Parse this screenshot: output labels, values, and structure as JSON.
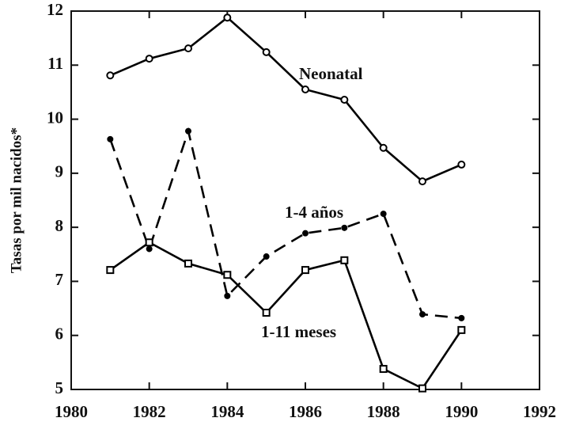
{
  "chart_data": {
    "type": "line",
    "y_label": "Tasas por mil nacidos*",
    "x": [
      1981,
      1982,
      1983,
      1984,
      1985,
      1986,
      1987,
      1988,
      1989,
      1990
    ],
    "series": [
      {
        "name": "Neonatal",
        "color": "#000000",
        "marker": "circle",
        "dashed": false,
        "values": [
          10.81,
          11.12,
          11.31,
          11.88,
          11.24,
          10.55,
          10.36,
          9.47,
          8.85,
          9.16
        ]
      },
      {
        "name": "1-4 años",
        "color": "#000000",
        "marker": "dot",
        "dashed": true,
        "values": [
          9.63,
          7.6,
          9.78,
          6.73,
          7.46,
          7.89,
          7.99,
          8.25,
          6.39,
          6.32
        ]
      },
      {
        "name": "1-11 meses",
        "color": "#000000",
        "marker": "square",
        "dashed": false,
        "values": [
          7.21,
          7.72,
          7.33,
          7.12,
          6.42,
          7.21,
          7.39,
          5.38,
          5.02,
          6.1
        ]
      }
    ],
    "xlim": [
      1980,
      1992
    ],
    "xticks": [
      1980,
      1982,
      1984,
      1986,
      1988,
      1990,
      1992
    ],
    "ylim": [
      5,
      12
    ],
    "yticks": [
      5,
      6,
      7,
      8,
      9,
      10,
      11,
      12
    ],
    "grid": false
  }
}
